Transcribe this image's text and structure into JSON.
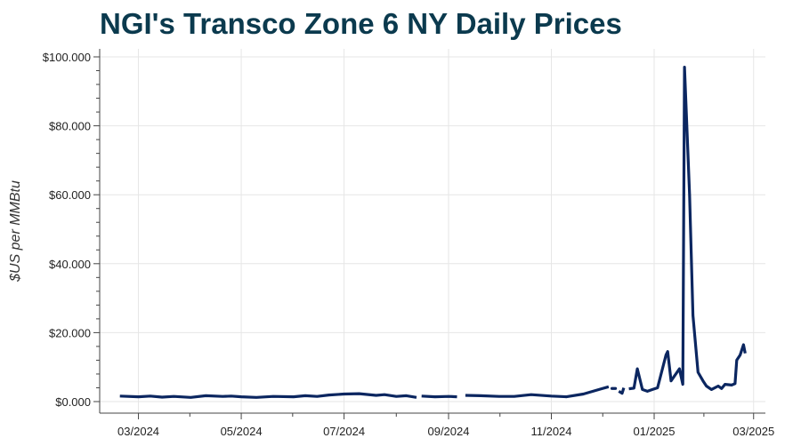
{
  "chart_data": {
    "type": "line",
    "title": "NGI's Transco Zone 6 NY Daily Prices",
    "xlabel": "",
    "ylabel": "$US per MMBtu",
    "ylim": [
      0,
      100
    ],
    "yticks": [
      0,
      20,
      40,
      60,
      80,
      100
    ],
    "ytick_labels": [
      "$0.000",
      "$20.000",
      "$40.000",
      "$60.000",
      "$80.000",
      "$100.000"
    ],
    "xlim": [
      "2024-02-07",
      "2025-03-08"
    ],
    "xticks": [
      "2024-03-01",
      "2024-05-01",
      "2024-07-01",
      "2024-09-01",
      "2024-11-01",
      "2025-01-01",
      "2025-03-01"
    ],
    "xtick_labels": [
      "03/2024",
      "05/2024",
      "07/2024",
      "09/2024",
      "11/2024",
      "01/2025",
      "03/2025"
    ],
    "grid": true,
    "color": "#0b2660",
    "series": [
      {
        "name": "Transco Zone 6 NY",
        "segments": [
          [
            [
              "2024-02-19",
              1.6
            ],
            [
              "2024-03-01",
              1.4
            ],
            [
              "2024-03-08",
              1.6
            ],
            [
              "2024-03-15",
              1.3
            ],
            [
              "2024-03-22",
              1.5
            ],
            [
              "2024-04-01",
              1.2
            ],
            [
              "2024-04-10",
              1.7
            ],
            [
              "2024-04-20",
              1.5
            ],
            [
              "2024-04-25",
              1.6
            ],
            [
              "2024-05-01",
              1.4
            ],
            [
              "2024-05-10",
              1.2
            ],
            [
              "2024-05-20",
              1.5
            ],
            [
              "2024-06-01",
              1.4
            ],
            [
              "2024-06-08",
              1.7
            ],
            [
              "2024-06-15",
              1.5
            ],
            [
              "2024-06-22",
              1.9
            ],
            [
              "2024-07-01",
              2.2
            ],
            [
              "2024-07-10",
              2.3
            ],
            [
              "2024-07-20",
              1.8
            ],
            [
              "2024-07-25",
              2.0
            ],
            [
              "2024-08-01",
              1.5
            ],
            [
              "2024-08-07",
              1.7
            ],
            [
              "2024-08-13",
              1.2
            ]
          ],
          [
            [
              "2024-08-16",
              1.6
            ],
            [
              "2024-08-24",
              1.4
            ],
            [
              "2024-09-01",
              1.5
            ],
            [
              "2024-09-06",
              1.4
            ]
          ],
          [
            [
              "2024-09-11",
              1.8
            ],
            [
              "2024-09-20",
              1.7
            ],
            [
              "2024-10-01",
              1.5
            ],
            [
              "2024-10-10",
              1.5
            ],
            [
              "2024-10-20",
              2.0
            ],
            [
              "2024-11-01",
              1.6
            ],
            [
              "2024-11-10",
              1.4
            ],
            [
              "2024-11-20",
              2.2
            ],
            [
              "2024-11-30",
              3.6
            ],
            [
              "2024-12-05",
              4.3
            ]
          ],
          [
            [
              "2024-12-08",
              3.8
            ]
          ],
          [
            [
              "2024-12-11",
              3.0
            ],
            [
              "2024-12-13",
              2.4
            ],
            [
              "2024-12-14",
              4.0
            ]
          ],
          [
            [
              "2024-12-17",
              3.7
            ],
            [
              "2024-12-20",
              3.9
            ],
            [
              "2024-12-22",
              9.5
            ],
            [
              "2024-12-25",
              3.5
            ],
            [
              "2024-12-28",
              3.0
            ],
            [
              "2024-12-31",
              3.5
            ],
            [
              "2025-01-03",
              4.0
            ],
            [
              "2025-01-08",
              13.5
            ],
            [
              "2025-01-09",
              14.5
            ],
            [
              "2025-01-11",
              6.0
            ],
            [
              "2025-01-16",
              9.5
            ],
            [
              "2025-01-18",
              5.0
            ],
            [
              "2025-01-19",
              97.0
            ],
            [
              "2025-01-22",
              60.0
            ],
            [
              "2025-01-24",
              25.0
            ],
            [
              "2025-01-27",
              8.5
            ],
            [
              "2025-01-30",
              6.0
            ],
            [
              "2025-02-01",
              4.5
            ],
            [
              "2025-02-04",
              3.5
            ],
            [
              "2025-02-08",
              4.5
            ],
            [
              "2025-02-10",
              3.8
            ],
            [
              "2025-02-12",
              5.0
            ],
            [
              "2025-02-16",
              4.8
            ],
            [
              "2025-02-18",
              5.2
            ],
            [
              "2025-02-19",
              12.0
            ],
            [
              "2025-02-21",
              13.5
            ],
            [
              "2025-02-23",
              16.5
            ],
            [
              "2025-02-24",
              14.0
            ]
          ]
        ]
      }
    ]
  }
}
